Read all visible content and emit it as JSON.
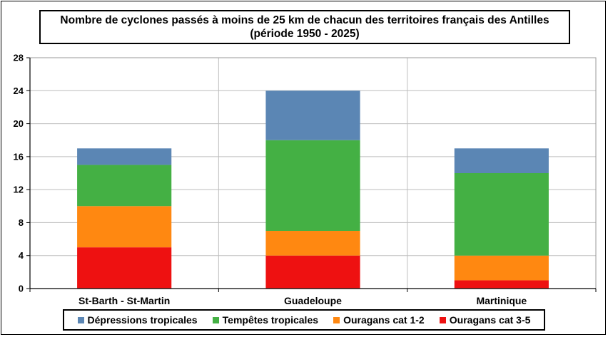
{
  "chart_data": {
    "type": "bar",
    "stacked": true,
    "title": "Nombre de cyclones passés à moins de 25 km de chacun des territoires français des Antilles",
    "subtitle": "(période 1950 - 2025)",
    "categories": [
      "St-Barth - St-Martin",
      "Guadeloupe",
      "Martinique"
    ],
    "series": [
      {
        "name": "Ouragans cat 3-5",
        "color": "#ee1111",
        "values": [
          5,
          4,
          1
        ]
      },
      {
        "name": "Ouragans cat 1-2",
        "color": "#ff8811",
        "values": [
          5,
          3,
          3
        ]
      },
      {
        "name": "Tempêtes tropicales",
        "color": "#44b044",
        "values": [
          5,
          11,
          10
        ]
      },
      {
        "name": "Dépressions tropicales",
        "color": "#5b86b4",
        "values": [
          2,
          6,
          3
        ]
      }
    ],
    "legend_order": [
      "Dépressions tropicales",
      "Tempêtes tropicales",
      "Ouragans cat 1-2",
      "Ouragans cat 3-5"
    ],
    "ylim": [
      0,
      28
    ],
    "yticks": [
      "0",
      "4",
      "8",
      "12",
      "16",
      "20",
      "24",
      "28"
    ],
    "grid": true,
    "legend_position": "bottom"
  }
}
